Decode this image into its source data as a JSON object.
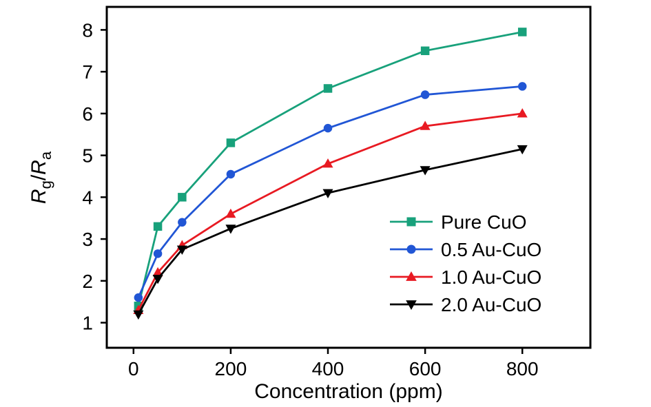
{
  "figure": {
    "background": "#ffffff",
    "axis_color": "#000000"
  },
  "chart_data": {
    "type": "line",
    "title": "",
    "xlabel": "Concentration (ppm)",
    "ylabel_plain": "Rg/Ra",
    "ylabel_parts": {
      "R1": "R",
      "sub1": "g",
      "slash": "/",
      "R2": "R",
      "sub2": "a"
    },
    "x": [
      10,
      50,
      100,
      200,
      400,
      600,
      800
    ],
    "xticks": [
      0,
      200,
      400,
      600,
      800
    ],
    "yticks": [
      1,
      2,
      3,
      4,
      5,
      6,
      7,
      8
    ],
    "xlim": [
      -55,
      940
    ],
    "ylim": [
      0.4,
      8.55
    ],
    "grid": false,
    "legend_position": "inside-right-lower",
    "series": [
      {
        "name": "Pure CuO",
        "color": "#18a17b",
        "marker": "square",
        "values": [
          1.4,
          3.3,
          4.0,
          5.3,
          6.6,
          7.5,
          7.95
        ]
      },
      {
        "name": "0.5 Au-CuO",
        "color": "#2156d5",
        "marker": "circle",
        "values": [
          1.6,
          2.65,
          3.4,
          4.55,
          5.65,
          6.45,
          6.65
        ]
      },
      {
        "name": "1.0 Au-CuO",
        "color": "#e81a22",
        "marker": "triangle-up",
        "values": [
          1.3,
          2.2,
          2.85,
          3.6,
          4.8,
          5.7,
          6.0
        ]
      },
      {
        "name": "2.0 Au-CuO",
        "color": "#000000",
        "marker": "triangle-down",
        "values": [
          1.2,
          2.05,
          2.75,
          3.25,
          4.1,
          4.65,
          5.15
        ]
      }
    ]
  }
}
